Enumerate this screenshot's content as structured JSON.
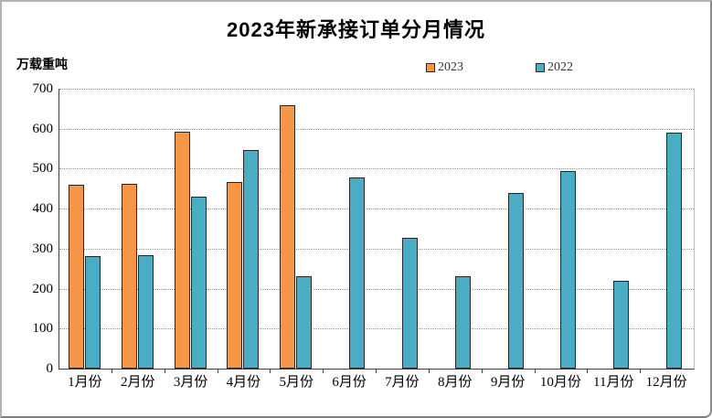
{
  "chart_data": {
    "type": "bar",
    "title": "2023年新承接订单分月情况",
    "ylabel": "万载重吨",
    "categories": [
      "1月份",
      "2月份",
      "3月份",
      "4月份",
      "5月份",
      "6月份",
      "7月份",
      "8月份",
      "9月份",
      "10月份",
      "11月份",
      "12月份"
    ],
    "series": [
      {
        "name": "2023",
        "color": "#F79646",
        "values": [
          460,
          462,
          593,
          466,
          659,
          null,
          null,
          null,
          null,
          null,
          null,
          null
        ]
      },
      {
        "name": "2022",
        "color": "#4BACC6",
        "values": [
          281,
          283,
          429,
          546,
          230,
          477,
          326,
          232,
          440,
          494,
          220,
          591
        ]
      }
    ],
    "ylim": [
      0,
      700
    ],
    "yticks": [
      0,
      100,
      200,
      300,
      400,
      500,
      600,
      700
    ],
    "grid": "horizontal-dotted",
    "legend_position": "top-center",
    "bar_border_color": "#262626",
    "background_color": "#ffffff"
  }
}
